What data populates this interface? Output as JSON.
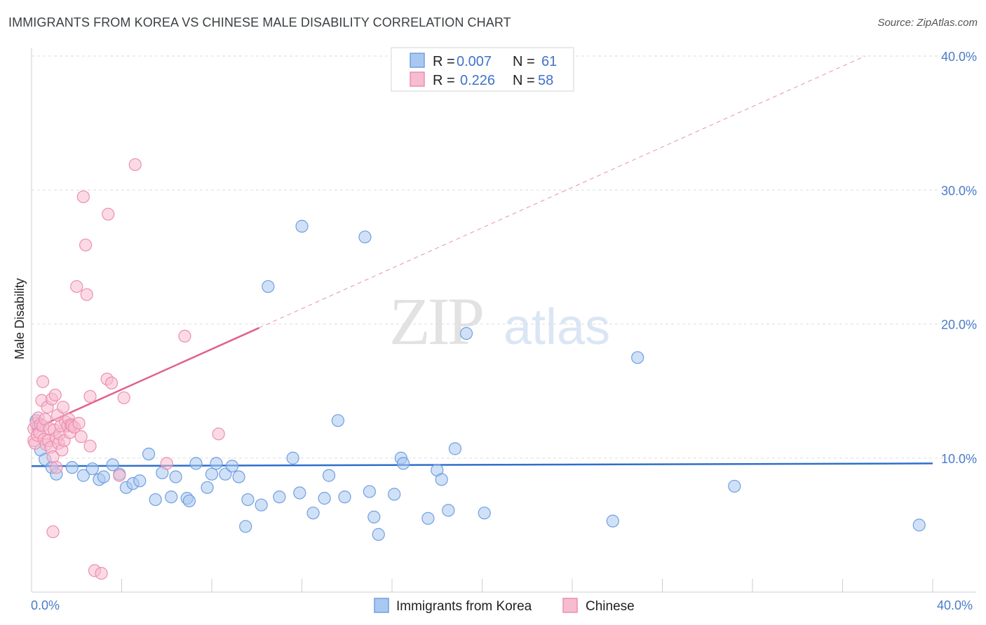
{
  "header": {
    "title": "IMMIGRANTS FROM KOREA VS CHINESE MALE DISABILITY CORRELATION CHART",
    "source": "Source: ZipAtlas.com"
  },
  "watermark": {
    "zip": "ZIP",
    "atlas": "atlas"
  },
  "chart_data": {
    "type": "scatter",
    "title": "IMMIGRANTS FROM KOREA VS CHINESE MALE DISABILITY CORRELATION CHART",
    "xlabel": "",
    "ylabel": "Male Disability",
    "xlim": [
      0,
      40
    ],
    "ylim": [
      0,
      40
    ],
    "x_tick_labels": [
      "0.0%",
      "40.0%"
    ],
    "y_ticks": [
      10,
      20,
      30,
      40
    ],
    "y_tick_labels": [
      "10.0%",
      "20.0%",
      "30.0%",
      "40.0%"
    ],
    "grid": true,
    "legend_position": "top-center",
    "colors": {
      "korea_fill": "#a9c8f0",
      "korea_stroke": "#6f9fe0",
      "korea_line": "#2f6fc9",
      "chinese_fill": "#f7bcd0",
      "chinese_stroke": "#ec8fb0",
      "chinese_line": "#e0608e",
      "tick_text": "#4a7cc9",
      "grid": "#dddddd"
    },
    "legend": [
      {
        "r_label": "R =",
        "r_value": "0.007",
        "n_label": "N =",
        "n_value": "61"
      },
      {
        "r_label": "R =",
        "r_value": "0.226",
        "n_label": "N =",
        "n_value": "58"
      }
    ],
    "series": [
      {
        "name": "Immigrants from Korea",
        "trend": {
          "x": [
            0,
            40
          ],
          "y": [
            9.4,
            9.6
          ],
          "solid_to": 40
        },
        "points": [
          [
            0.2,
            12.8
          ],
          [
            0.3,
            12.4
          ],
          [
            0.4,
            10.6
          ],
          [
            0.6,
            9.9
          ],
          [
            0.9,
            9.3
          ],
          [
            1.1,
            8.8
          ],
          [
            1.8,
            9.3
          ],
          [
            2.3,
            8.7
          ],
          [
            2.7,
            9.2
          ],
          [
            3.0,
            8.4
          ],
          [
            3.2,
            8.6
          ],
          [
            3.6,
            9.5
          ],
          [
            3.9,
            8.8
          ],
          [
            4.2,
            7.8
          ],
          [
            4.5,
            8.1
          ],
          [
            4.8,
            8.3
          ],
          [
            5.2,
            10.3
          ],
          [
            5.5,
            6.9
          ],
          [
            5.8,
            8.9
          ],
          [
            6.2,
            7.1
          ],
          [
            6.4,
            8.6
          ],
          [
            6.9,
            7.0
          ],
          [
            7.0,
            6.8
          ],
          [
            7.3,
            9.6
          ],
          [
            7.8,
            7.8
          ],
          [
            8.0,
            8.8
          ],
          [
            8.2,
            9.6
          ],
          [
            8.6,
            8.8
          ],
          [
            8.9,
            9.4
          ],
          [
            9.2,
            8.6
          ],
          [
            9.5,
            4.9
          ],
          [
            9.6,
            6.9
          ],
          [
            10.2,
            6.5
          ],
          [
            10.5,
            22.8
          ],
          [
            11.0,
            7.1
          ],
          [
            11.6,
            10.0
          ],
          [
            11.9,
            7.4
          ],
          [
            12.0,
            27.3
          ],
          [
            12.5,
            5.9
          ],
          [
            13.0,
            7.0
          ],
          [
            13.2,
            8.7
          ],
          [
            13.6,
            12.8
          ],
          [
            13.9,
            7.1
          ],
          [
            14.8,
            26.5
          ],
          [
            15.0,
            7.5
          ],
          [
            15.2,
            5.6
          ],
          [
            15.4,
            4.3
          ],
          [
            16.1,
            7.3
          ],
          [
            16.4,
            10.0
          ],
          [
            16.5,
            9.6
          ],
          [
            17.6,
            5.5
          ],
          [
            18.0,
            9.1
          ],
          [
            18.2,
            8.4
          ],
          [
            18.5,
            6.1
          ],
          [
            18.8,
            10.7
          ],
          [
            19.3,
            19.3
          ],
          [
            20.1,
            5.9
          ],
          [
            25.8,
            5.3
          ],
          [
            26.9,
            17.5
          ],
          [
            31.2,
            7.9
          ],
          [
            39.4,
            5.0
          ]
        ]
      },
      {
        "name": "Chinese",
        "trend": {
          "x": [
            0,
            37
          ],
          "y": [
            12.1,
            40.0
          ],
          "solid_to": 10.1
        },
        "points": [
          [
            0.1,
            12.2
          ],
          [
            0.1,
            11.3
          ],
          [
            0.15,
            11.1
          ],
          [
            0.2,
            12.6
          ],
          [
            0.25,
            11.7
          ],
          [
            0.3,
            13.0
          ],
          [
            0.35,
            11.9
          ],
          [
            0.4,
            12.5
          ],
          [
            0.45,
            14.3
          ],
          [
            0.5,
            15.7
          ],
          [
            0.5,
            12.4
          ],
          [
            0.55,
            11.4
          ],
          [
            0.6,
            12.9
          ],
          [
            0.65,
            11.0
          ],
          [
            0.7,
            13.8
          ],
          [
            0.75,
            11.3
          ],
          [
            0.8,
            12.2
          ],
          [
            0.85,
            10.8
          ],
          [
            0.9,
            14.4
          ],
          [
            0.95,
            10.1
          ],
          [
            1.0,
            12.1
          ],
          [
            1.05,
            14.7
          ],
          [
            1.1,
            11.5
          ],
          [
            1.1,
            9.3
          ],
          [
            1.15,
            13.2
          ],
          [
            1.2,
            11.1
          ],
          [
            1.25,
            11.8
          ],
          [
            1.3,
            12.4
          ],
          [
            1.35,
            10.6
          ],
          [
            1.4,
            13.8
          ],
          [
            1.45,
            11.3
          ],
          [
            1.5,
            12.7
          ],
          [
            1.6,
            12.4
          ],
          [
            1.65,
            12.9
          ],
          [
            1.7,
            11.9
          ],
          [
            1.75,
            12.5
          ],
          [
            1.8,
            12.4
          ],
          [
            1.9,
            12.3
          ],
          [
            2.0,
            22.8
          ],
          [
            2.1,
            12.6
          ],
          [
            2.2,
            11.6
          ],
          [
            2.3,
            29.5
          ],
          [
            2.4,
            25.9
          ],
          [
            2.45,
            22.2
          ],
          [
            2.6,
            14.6
          ],
          [
            2.8,
            1.6
          ],
          [
            3.1,
            1.4
          ],
          [
            3.35,
            15.9
          ],
          [
            3.4,
            28.2
          ],
          [
            3.55,
            15.6
          ],
          [
            3.9,
            8.7
          ],
          [
            4.1,
            14.5
          ],
          [
            4.6,
            31.9
          ],
          [
            6.0,
            9.6
          ],
          [
            6.8,
            19.1
          ],
          [
            8.3,
            11.8
          ],
          [
            0.95,
            4.5
          ],
          [
            2.6,
            10.9
          ]
        ]
      }
    ]
  }
}
